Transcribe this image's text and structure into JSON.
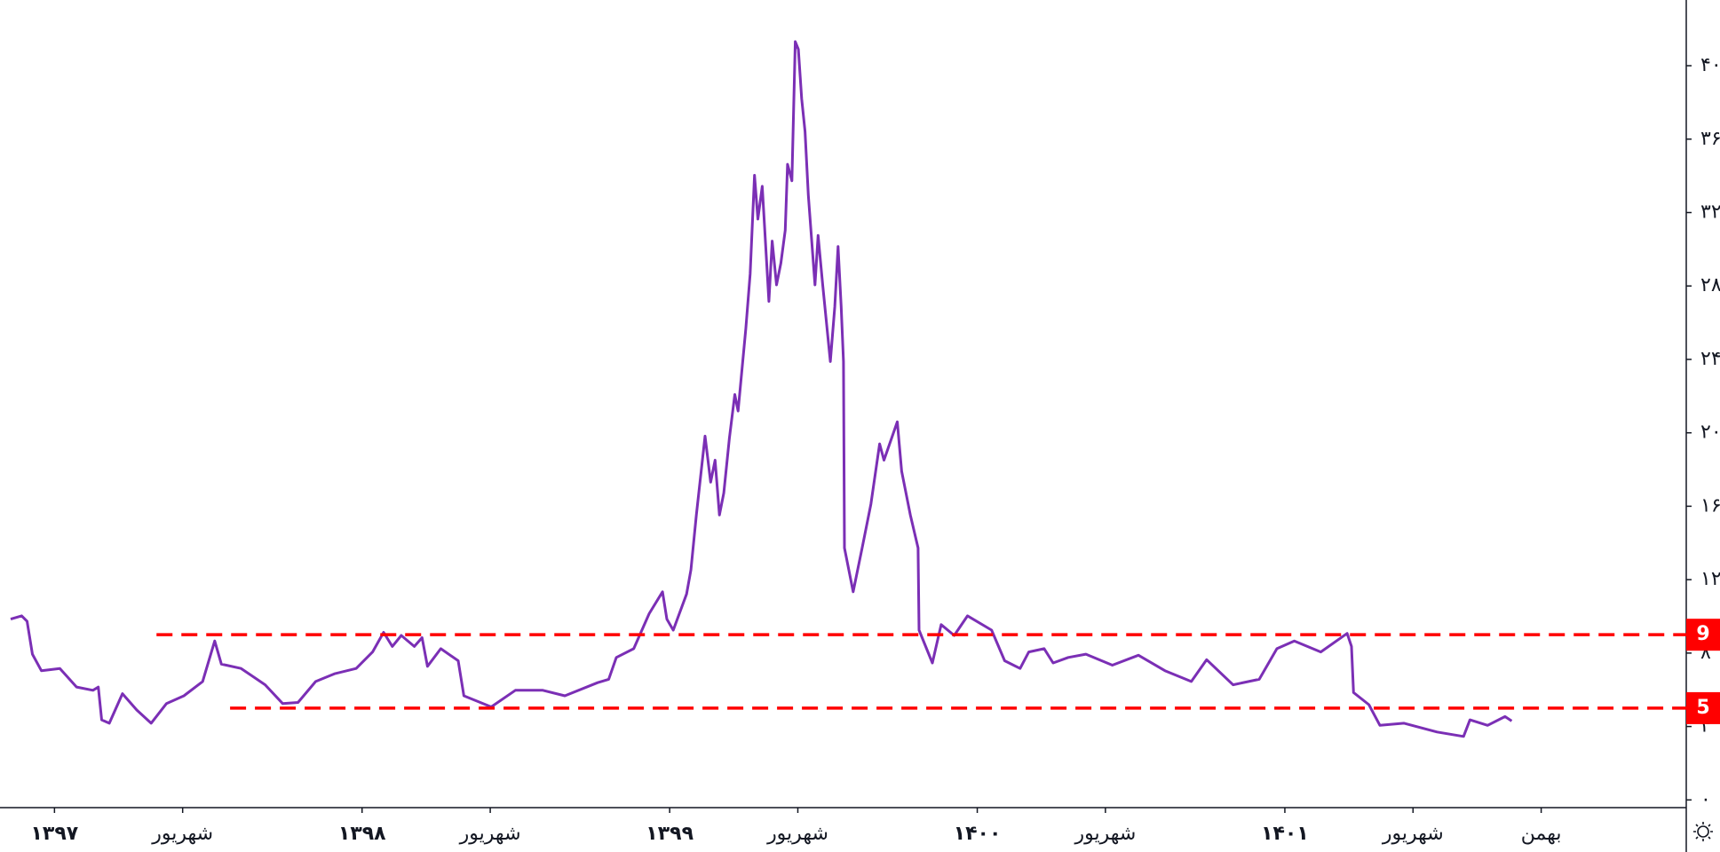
{
  "chart_data": {
    "type": "line",
    "x": [
      -1.71,
      -1.28,
      -1.07,
      -0.86,
      -0.51,
      0.21,
      0.86,
      1.5,
      1.71,
      1.84,
      2.14,
      2.65,
      3.21,
      3.77,
      4.37,
      5.05,
      5.78,
      6.25,
      6.51,
      7.28,
      8.22,
      8.9,
      9.5,
      10.19,
      10.92,
      11.77,
      12.41,
      12.84,
      13.18,
      13.53,
      14.04,
      14.34,
      14.55,
      15.07,
      15.75,
      15.97,
      17.04,
      17.98,
      19.05,
      19.91,
      21.19,
      21.62,
      21.92,
      22.6,
      23.2,
      23.72,
      23.89,
      24.14,
      24.66,
      24.83,
      25.04,
      25.38,
      25.6,
      25.77,
      25.94,
      26.11,
      26.33,
      26.54,
      26.67,
      26.97,
      27.14,
      27.31,
      27.44,
      27.61,
      27.87,
      28.0,
      28.17,
      28.34,
      28.51,
      28.6,
      28.77,
      28.9,
      29.02,
      29.15,
      29.28,
      29.41,
      29.67,
      29.79,
      29.97,
      30.27,
      30.44,
      30.57,
      30.69,
      30.78,
      30.82,
      31.16,
      31.51,
      31.85,
      32.19,
      32.36,
      32.88,
      33.05,
      33.39,
      33.69,
      33.73,
      34.25,
      34.59,
      35.1,
      35.62,
      36.56,
      37.07,
      37.67,
      38.01,
      38.61,
      38.96,
      39.55,
      40.24,
      41.27,
      42.29,
      43.32,
      44.35,
      44.95,
      45.98,
      47.0,
      47.69,
      48.37,
      49.4,
      50.43,
      50.6,
      50.68,
      51.28,
      51.71,
      52.65,
      53.94,
      54.97,
      55.22,
      55.91,
      56.59,
      56.85
    ],
    "series": [
      {
        "color": "#7b2fb5",
        "values": [
          9.85,
          10.03,
          9.73,
          7.94,
          7.04,
          7.16,
          6.15,
          5.97,
          6.15,
          4.36,
          4.18,
          5.79,
          4.9,
          4.18,
          5.25,
          5.67,
          6.45,
          8.66,
          7.4,
          7.16,
          6.27,
          5.25,
          5.31,
          6.45,
          6.87,
          7.16,
          8.06,
          9.13,
          8.36,
          8.96,
          8.36,
          8.84,
          7.28,
          8.24,
          7.58,
          5.67,
          5.07,
          5.97,
          5.97,
          5.67,
          6.39,
          6.57,
          7.76,
          8.24,
          10.15,
          11.34,
          9.85,
          9.25,
          11.22,
          12.54,
          15.52,
          19.82,
          17.31,
          18.51,
          15.52,
          16.72,
          19.7,
          22.09,
          21.19,
          25.67,
          28.66,
          34.03,
          31.64,
          33.43,
          27.16,
          30.45,
          28.06,
          29.25,
          31.04,
          34.63,
          33.73,
          41.31,
          40.89,
          38.21,
          36.42,
          32.95,
          28.06,
          30.75,
          28.06,
          23.88,
          26.87,
          30.15,
          26.87,
          23.88,
          13.73,
          11.34,
          13.73,
          16.12,
          19.4,
          18.51,
          20.6,
          17.91,
          15.52,
          13.73,
          9.25,
          7.46,
          9.55,
          8.96,
          10.03,
          9.25,
          7.58,
          7.16,
          8.06,
          8.24,
          7.46,
          7.76,
          7.94,
          7.34,
          7.88,
          7.04,
          6.45,
          7.64,
          6.27,
          6.57,
          8.24,
          8.66,
          8.06,
          9.07,
          8.36,
          5.85,
          5.19,
          4.06,
          4.18,
          3.7,
          3.46,
          4.36,
          4.06,
          4.54,
          4.3
        ]
      }
    ],
    "xlim": [
      -1.71,
      63.66
    ],
    "xticks": [
      {
        "value": 0,
        "label": "۱۳۹۷"
      },
      {
        "value": 5,
        "label": "شهریور"
      },
      {
        "value": 12,
        "label": "۱۳۹۸"
      },
      {
        "value": 17,
        "label": "شهریور"
      },
      {
        "value": 24,
        "label": "۱۳۹۹"
      },
      {
        "value": 29,
        "label": "شهریور"
      },
      {
        "value": 36,
        "label": "۱۴۰۰"
      },
      {
        "value": 41,
        "label": "شهریور"
      },
      {
        "value": 48,
        "label": "۱۴۰۱"
      },
      {
        "value": 53,
        "label": "شهریور"
      },
      {
        "value": 58,
        "label": "بهمن"
      }
    ],
    "ylim": [
      -0.42,
      43.58
    ],
    "yticks": [
      {
        "value": 0,
        "label": "۰"
      },
      {
        "value": 4,
        "label": "۴"
      },
      {
        "value": 8,
        "label": "۸"
      },
      {
        "value": 12,
        "label": "۱۲"
      },
      {
        "value": 16,
        "label": "۱۶"
      },
      {
        "value": 20,
        "label": "۲۰"
      },
      {
        "value": 24,
        "label": "۲۴"
      },
      {
        "value": 28,
        "label": "۲۸"
      },
      {
        "value": 32,
        "label": "۳۲"
      },
      {
        "value": 36,
        "label": "۳۶"
      },
      {
        "value": 40,
        "label": "۴۰"
      }
    ],
    "hlines": [
      {
        "value": 9,
        "x0": 3.98,
        "color": "#ff0000"
      },
      {
        "value": 5,
        "x0": 6.85,
        "color": "#ff0000"
      }
    ]
  }
}
